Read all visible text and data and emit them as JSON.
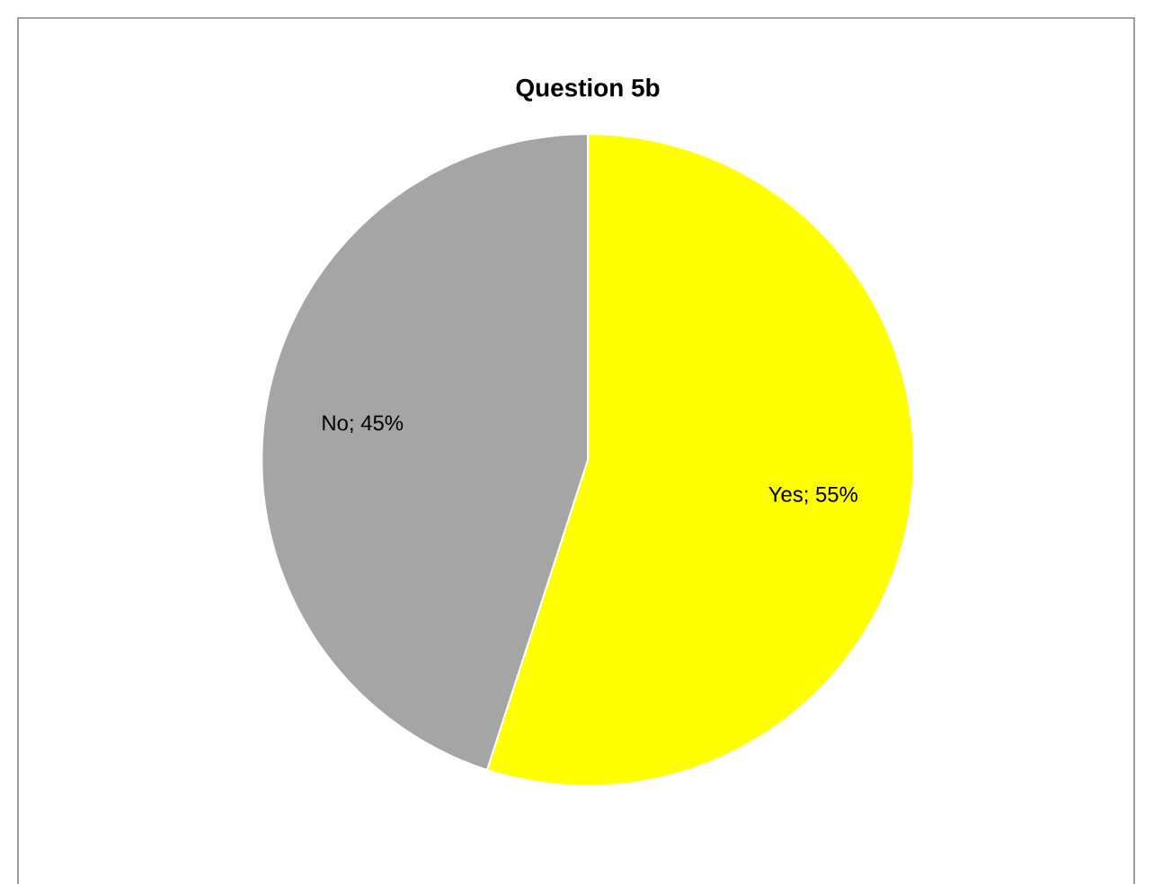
{
  "chart_data": {
    "type": "pie",
    "title": "Question 5b",
    "categories": [
      "Yes",
      "No"
    ],
    "values": [
      55,
      45
    ],
    "colors": [
      "#ffff00",
      "#a5a5a5"
    ],
    "value_labels": [
      "; 55%",
      "; 45%"
    ]
  }
}
